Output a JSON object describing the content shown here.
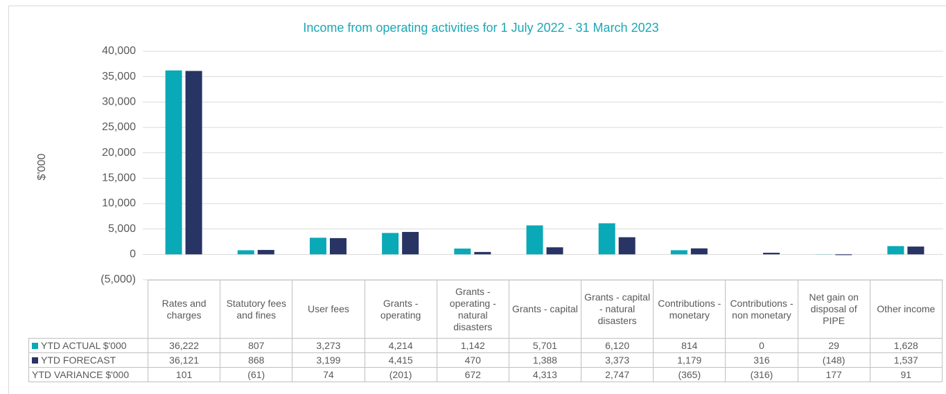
{
  "chart_data": {
    "type": "bar",
    "title": "Income from operating activities for 1 July 2022 - 31 March 2023",
    "y_label": "$'000",
    "categories": [
      "Rates and charges",
      "Statutory fees and fines",
      "User fees",
      "Grants - operating",
      "Grants - operating - natural disasters",
      "Grants - capital",
      "Grants - capital - natural disasters",
      "Contributions - monetary",
      "Contributions - non monetary",
      "Net gain on disposal of PIPE",
      "Other income"
    ],
    "series": [
      {
        "name": "YTD ACTUAL $'000",
        "color": "#0aa9b7",
        "values": [
          36222,
          807,
          3273,
          4214,
          1142,
          5701,
          6120,
          814,
          0,
          29,
          1628
        ],
        "value_labels": [
          "36,222",
          "807",
          "3,273",
          "4,214",
          "1,142",
          "5,701",
          "6,120",
          "814",
          "0",
          "29",
          "1,628"
        ]
      },
      {
        "name": "YTD FORECAST",
        "color": "#283463",
        "values": [
          36121,
          868,
          3199,
          4415,
          470,
          1388,
          3373,
          1179,
          316,
          -148,
          1537
        ],
        "value_labels": [
          "36,121",
          "868",
          "3,199",
          "4,415",
          "470",
          "1,388",
          "3,373",
          "1,179",
          "316",
          "(148)",
          "1,537"
        ]
      },
      {
        "name": "YTD VARIANCE $'000",
        "values": [
          101,
          -61,
          74,
          -201,
          672,
          4313,
          2747,
          -365,
          -316,
          177,
          91
        ],
        "value_labels": [
          "101",
          "(61)",
          "74",
          "(201)",
          "672",
          "4,313",
          "2,747",
          "(365)",
          "(316)",
          "177",
          "91"
        ]
      }
    ],
    "ylim": [
      -5000,
      40000
    ],
    "yticks": [
      {
        "value": -5000,
        "label": "(5,000)"
      },
      0,
      {
        "value": 5000,
        "label": "5,000"
      },
      {
        "value": 10000,
        "label": "10,000"
      },
      {
        "value": 15000,
        "label": "15,000"
      },
      {
        "value": 20000,
        "label": "20,000"
      },
      {
        "value": 25000,
        "label": "25,000"
      },
      {
        "value": 30000,
        "label": "30,000"
      },
      {
        "value": 35000,
        "label": "35,000"
      },
      {
        "value": 40000,
        "label": "40,000"
      }
    ],
    "grid": true
  }
}
